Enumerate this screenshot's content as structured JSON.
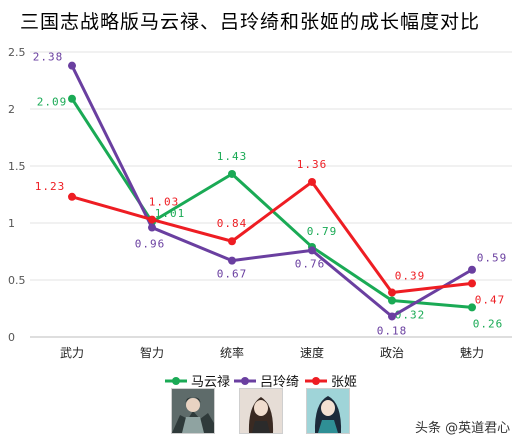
{
  "chart_data": {
    "type": "line",
    "title": "三国志战略版马云禄、吕玲绮和张姬的成长幅度对比",
    "categories": [
      "武力",
      "智力",
      "统率",
      "速度",
      "政治",
      "魅力"
    ],
    "ylim": [
      0,
      2.5
    ],
    "yticks": [
      "0",
      "0.5",
      "1",
      "1.5",
      "2",
      "2.5"
    ],
    "grid": true,
    "legend_position": "bottom",
    "series": [
      {
        "name": "马云禄",
        "color": "#1aaa55",
        "values": [
          2.09,
          1.01,
          1.43,
          0.79,
          0.32,
          0.26
        ],
        "labels": [
          "2.09",
          "1.01",
          "1.43",
          "0.79",
          "0.32",
          "0.26"
        ]
      },
      {
        "name": "吕玲绮",
        "color": "#6a3fa0",
        "values": [
          2.38,
          0.96,
          0.67,
          0.76,
          0.18,
          0.59
        ],
        "labels": [
          "2.38",
          "0.96",
          "0.67",
          "0.76",
          "0.18",
          "0.59"
        ]
      },
      {
        "name": "张姬",
        "color": "#ee1d23",
        "values": [
          1.23,
          1.03,
          0.84,
          1.36,
          0.39,
          0.47
        ],
        "labels": [
          "1.23",
          "1.03",
          "0.84",
          "1.36",
          "0.39",
          "0.47"
        ]
      }
    ]
  },
  "watermark": "头条 @英道君心"
}
